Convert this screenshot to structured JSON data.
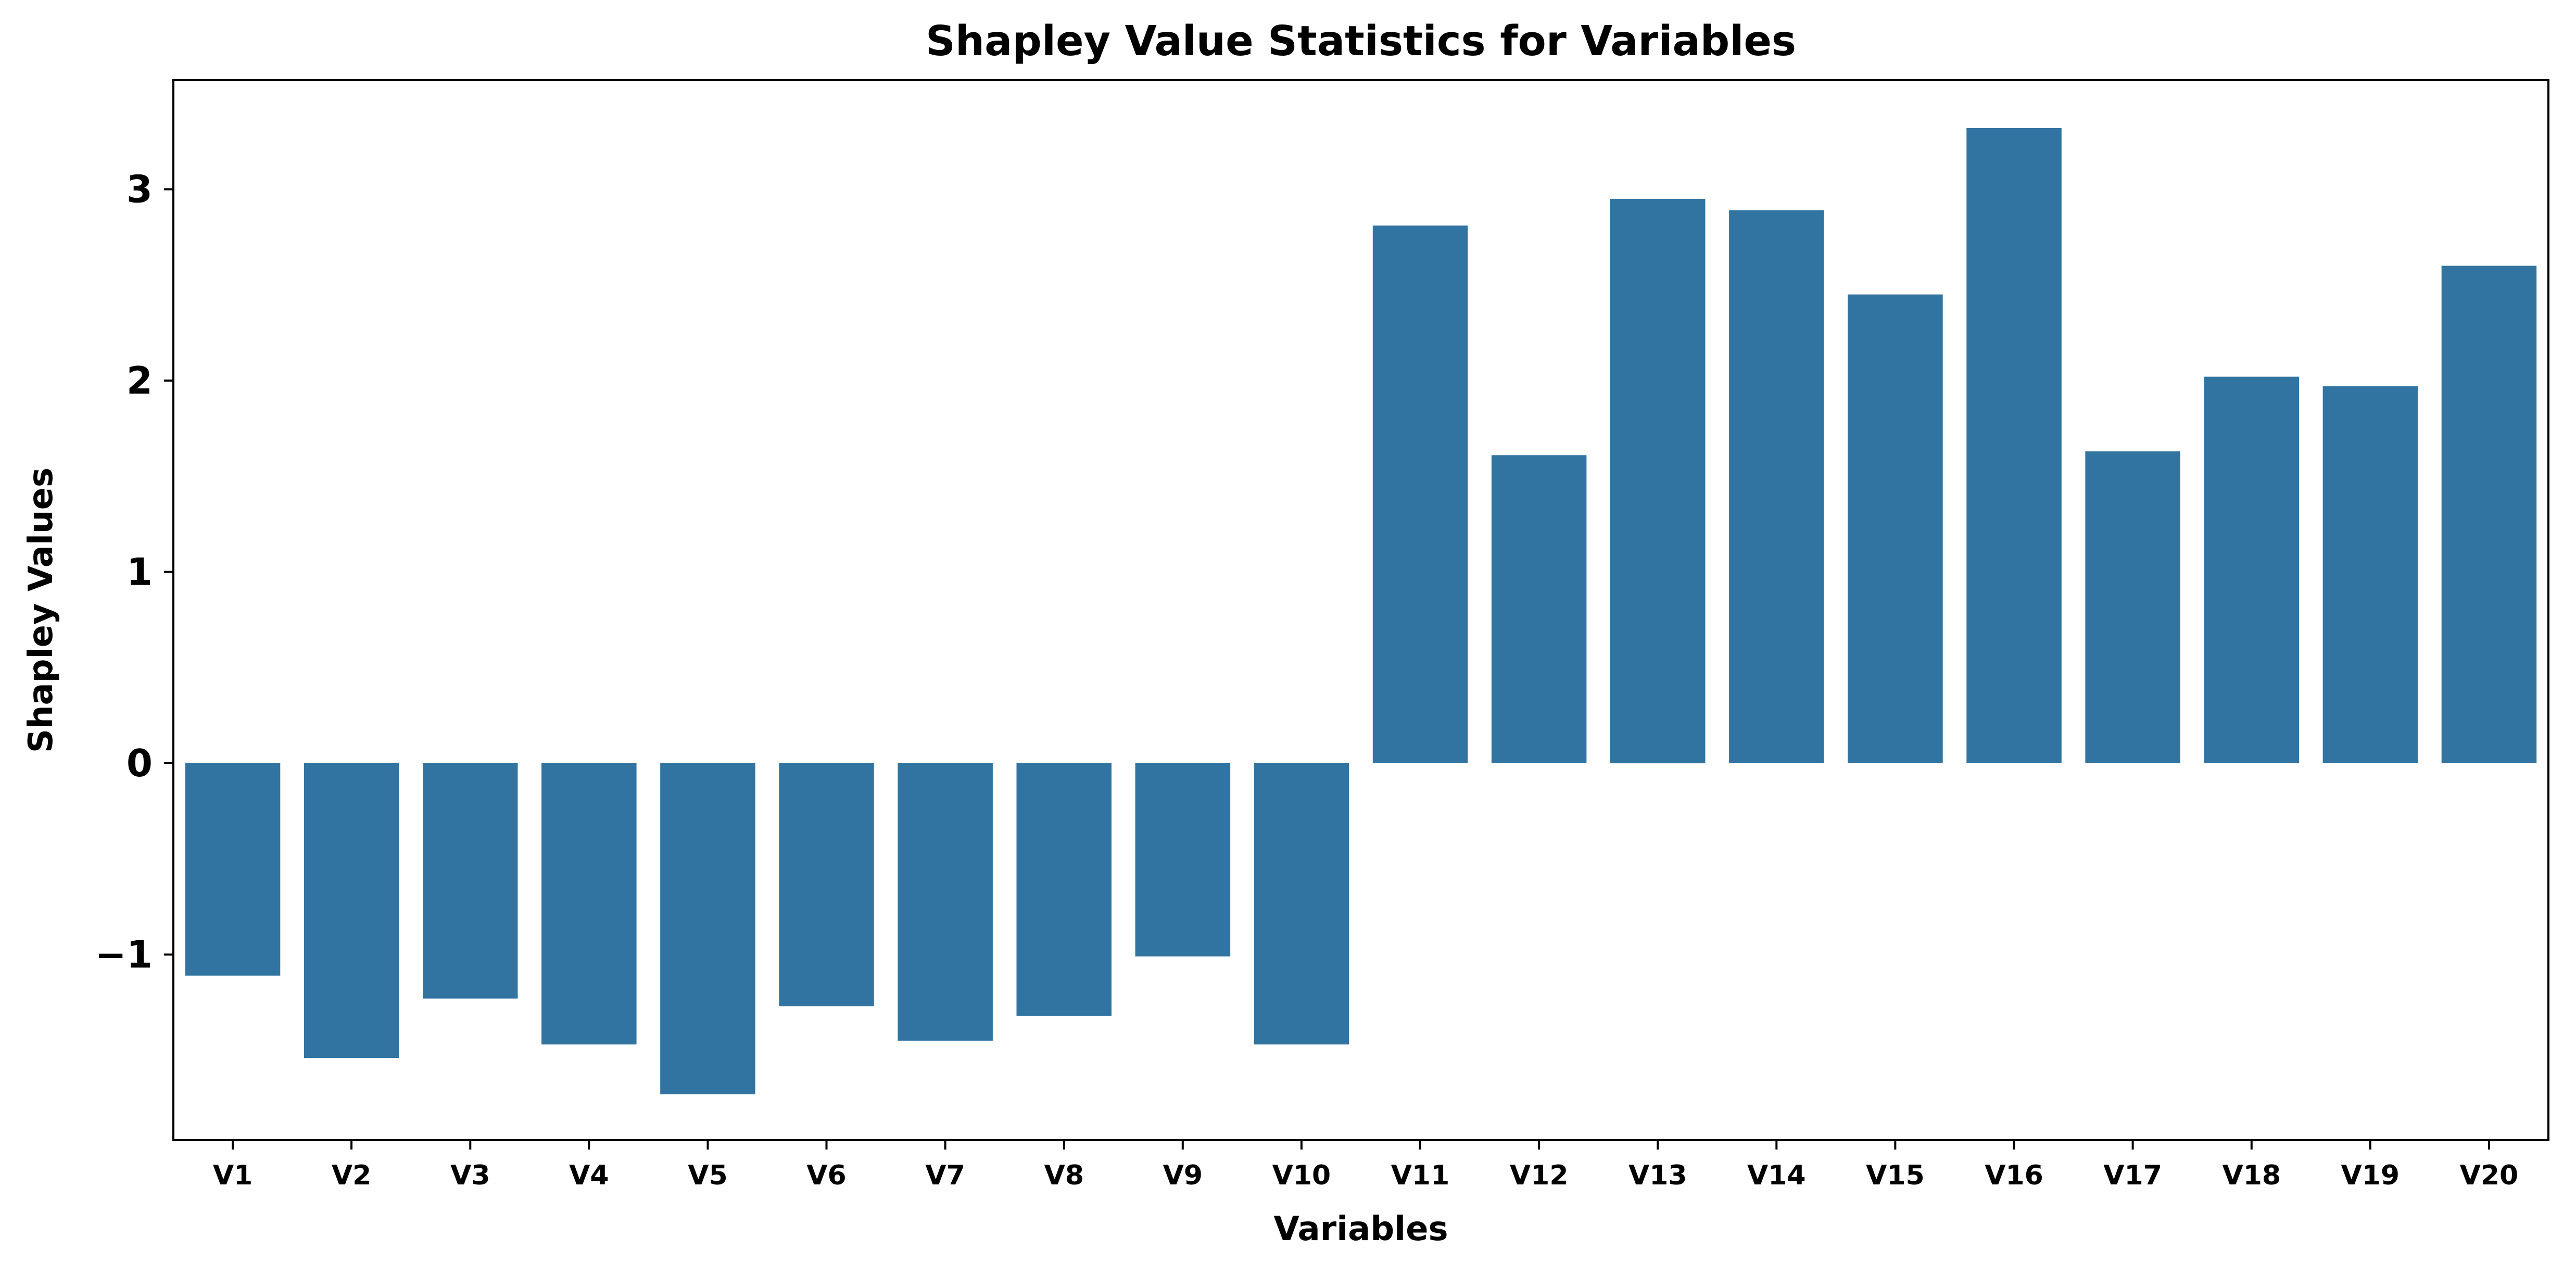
{
  "chart_data": {
    "type": "bar",
    "title": "Shapley Value Statistics for Variables",
    "xlabel": "Variables",
    "ylabel": "Shapley Values",
    "categories": [
      "V1",
      "V2",
      "V3",
      "V4",
      "V5",
      "V6",
      "V7",
      "V8",
      "V9",
      "V10",
      "V11",
      "V12",
      "V13",
      "V14",
      "V15",
      "V16",
      "V17",
      "V18",
      "V19",
      "V20"
    ],
    "values": [
      -1.11,
      -1.54,
      -1.23,
      -1.47,
      -1.73,
      -1.27,
      -1.45,
      -1.32,
      -1.01,
      -1.47,
      2.81,
      1.61,
      2.95,
      2.89,
      2.45,
      3.32,
      1.63,
      2.02,
      1.97,
      2.6
    ],
    "ylim": [
      -1.97,
      3.57
    ],
    "yticks": [
      -1,
      0,
      1,
      2,
      3
    ],
    "ytick_labels": [
      "−1",
      "0",
      "1",
      "2",
      "3"
    ],
    "grid": false,
    "bar_color": "#3274a1"
  }
}
